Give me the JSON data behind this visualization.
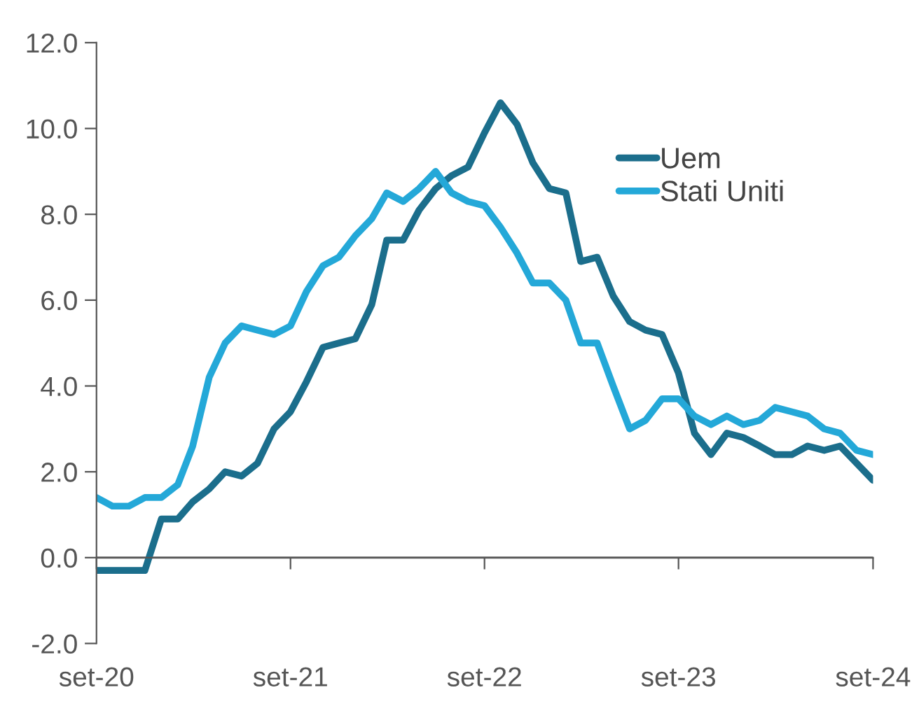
{
  "chart_data": {
    "type": "line",
    "x": [
      "2020-09",
      "2020-10",
      "2020-11",
      "2020-12",
      "2021-01",
      "2021-02",
      "2021-03",
      "2021-04",
      "2021-05",
      "2021-06",
      "2021-07",
      "2021-08",
      "2021-09",
      "2021-10",
      "2021-11",
      "2021-12",
      "2022-01",
      "2022-02",
      "2022-03",
      "2022-04",
      "2022-05",
      "2022-06",
      "2022-07",
      "2022-08",
      "2022-09",
      "2022-10",
      "2022-11",
      "2022-12",
      "2023-01",
      "2023-02",
      "2023-03",
      "2023-04",
      "2023-05",
      "2023-06",
      "2023-07",
      "2023-08",
      "2023-09",
      "2023-10",
      "2023-11",
      "2023-12",
      "2024-01",
      "2024-02",
      "2024-03",
      "2024-04",
      "2024-05",
      "2024-06",
      "2024-07",
      "2024-08",
      "2024-09"
    ],
    "series": [
      {
        "name": "Uem",
        "color": "#1b6e8c",
        "values": [
          -0.3,
          -0.3,
          -0.3,
          -0.3,
          0.9,
          0.9,
          1.3,
          1.6,
          2.0,
          1.9,
          2.2,
          3.0,
          3.4,
          4.1,
          4.9,
          5.0,
          5.1,
          5.9,
          7.4,
          7.4,
          8.1,
          8.6,
          8.9,
          9.1,
          9.9,
          10.6,
          10.1,
          9.2,
          8.6,
          8.5,
          6.9,
          7.0,
          6.1,
          5.5,
          5.3,
          5.2,
          4.3,
          2.9,
          2.4,
          2.9,
          2.8,
          2.6,
          2.4,
          2.4,
          2.6,
          2.5,
          2.6,
          2.2,
          1.8
        ]
      },
      {
        "name": "Stati Uniti",
        "color": "#24a8d8",
        "values": [
          1.4,
          1.2,
          1.2,
          1.4,
          1.4,
          1.7,
          2.6,
          4.2,
          5.0,
          5.4,
          5.3,
          5.2,
          5.4,
          6.2,
          6.8,
          7.0,
          7.5,
          7.9,
          8.5,
          8.3,
          8.6,
          9.0,
          8.5,
          8.3,
          8.2,
          7.7,
          7.1,
          6.4,
          6.4,
          6.0,
          5.0,
          5.0,
          4.0,
          3.0,
          3.2,
          3.7,
          3.7,
          3.3,
          3.1,
          3.3,
          3.1,
          3.2,
          3.5,
          3.4,
          3.3,
          3.0,
          2.9,
          2.5,
          2.4
        ]
      }
    ],
    "xlim": [
      "2020-09",
      "2024-09"
    ],
    "xticks": [
      {
        "value": "2020-09",
        "label": "set-20"
      },
      {
        "value": "2021-09",
        "label": "set-21"
      },
      {
        "value": "2022-09",
        "label": "set-22"
      },
      {
        "value": "2023-09",
        "label": "set-23"
      },
      {
        "value": "2024-09",
        "label": "set-24"
      }
    ],
    "ylim": [
      -2,
      12
    ],
    "yticks": [
      {
        "value": -2,
        "label": "-2.0"
      },
      {
        "value": 0,
        "label": "0.0"
      },
      {
        "value": 2,
        "label": "2.0"
      },
      {
        "value": 4,
        "label": "4.0"
      },
      {
        "value": 6,
        "label": "6.0"
      },
      {
        "value": 8,
        "label": "8.0"
      },
      {
        "value": 10,
        "label": "10.0"
      },
      {
        "value": 12,
        "label": "12.0"
      }
    ],
    "grid": false,
    "ref_lines": [
      {
        "axis": "y",
        "value": 0,
        "color": "#555555"
      }
    ],
    "legend": "top right",
    "marker": "none",
    "line_style": "solid"
  }
}
